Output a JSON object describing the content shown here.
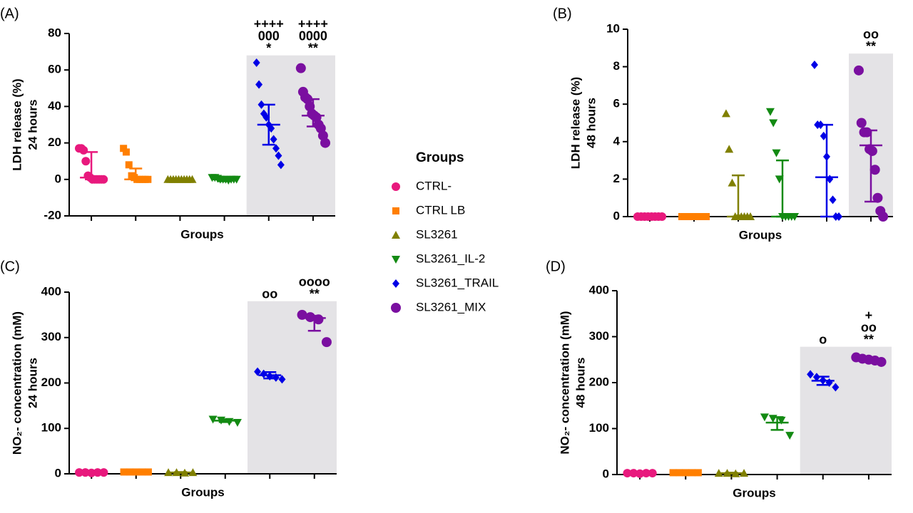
{
  "chart_data": [
    {
      "type": "dot",
      "panel": "(A)",
      "ylabel": [
        "LDH release (%)",
        "24 hours"
      ],
      "xlabel": "Groups",
      "legend_title": "Groups",
      "ylim": [
        -20,
        80
      ],
      "yticks": [
        -20,
        0,
        20,
        40,
        60,
        80
      ],
      "highlight": {
        "from": 4,
        "to": 5,
        "top": 68
      },
      "series": [
        {
          "name": "CTRL-",
          "color": "#e8197d",
          "marker": "circle",
          "values": [
            17,
            17,
            16,
            10,
            2,
            1,
            0,
            0,
            0,
            0,
            0,
            0
          ],
          "center": 1,
          "low": 0,
          "high": 15
        },
        {
          "name": "CTRL LB",
          "color": "#ff7f00",
          "marker": "square",
          "values": [
            17,
            15,
            8,
            2,
            1,
            0,
            0,
            0,
            0,
            0
          ],
          "center": 0,
          "low": 0,
          "high": 6
        },
        {
          "name": "SL3261",
          "color": "#808000",
          "marker": "triangle-up",
          "values": [
            0,
            0,
            0,
            0,
            0,
            0,
            0,
            0,
            0,
            0
          ],
          "center": -0.5,
          "low": -1,
          "high": 0
        },
        {
          "name": "SL3261_IL-2",
          "color": "#138a13",
          "marker": "triangle-down",
          "values": [
            1,
            1,
            0.5,
            0,
            0,
            0,
            -0.5,
            0,
            0,
            0
          ],
          "center": 0,
          "low": -1,
          "high": 1
        },
        {
          "name": "SL3261_TRAIL",
          "color": "#0000e6",
          "marker": "diamond",
          "values": [
            64,
            52,
            41,
            36,
            34,
            30,
            28,
            22,
            17,
            13,
            8
          ],
          "center": 30,
          "low": 19,
          "high": 41,
          "annotations": [
            "++++",
            "000",
            "*"
          ]
        },
        {
          "name": "SL3261_MIX",
          "color": "#7a0fa0",
          "marker": "circle-big",
          "values": [
            61,
            48,
            45,
            44,
            40,
            36,
            35,
            34,
            30,
            28,
            24,
            20
          ],
          "center": 35,
          "low": 29,
          "high": 44,
          "annotations": [
            "++++",
            "0000",
            "**"
          ]
        }
      ]
    },
    {
      "type": "dot",
      "panel": "(B)",
      "ylabel": [
        "LDH release (%)",
        "48 hours"
      ],
      "xlabel": "Groups",
      "ylim": [
        0,
        10
      ],
      "yticks": [
        0,
        2,
        4,
        6,
        8,
        10
      ],
      "highlight": {
        "from": 5,
        "to": 5,
        "top": 8.7
      },
      "series": [
        {
          "name": "CTRL-",
          "color": "#e8197d",
          "marker": "circle",
          "values": [
            0,
            0,
            0,
            0,
            0,
            0,
            0,
            0
          ],
          "center": 0,
          "low": 0,
          "high": 0
        },
        {
          "name": "CTRL LB",
          "color": "#ff7f00",
          "marker": "square",
          "values": [
            0,
            0,
            0,
            0,
            0,
            0,
            0,
            0
          ],
          "center": 0,
          "low": 0,
          "high": 0
        },
        {
          "name": "SL3261",
          "color": "#808000",
          "marker": "triangle-up",
          "values": [
            5.5,
            3.6,
            1.8,
            0,
            0,
            0,
            0,
            0,
            0
          ],
          "center": 0,
          "low": 0,
          "high": 2.2
        },
        {
          "name": "SL3261_IL-2",
          "color": "#138a13",
          "marker": "triangle-down",
          "values": [
            5.6,
            5,
            3.4,
            2,
            0,
            0,
            0,
            0,
            0
          ],
          "center": 0,
          "low": 0,
          "high": 3
        },
        {
          "name": "SL3261_TRAIL",
          "color": "#0000e6",
          "marker": "diamond",
          "values": [
            8.1,
            4.9,
            4.9,
            4.3,
            3.2,
            2,
            0.9,
            0,
            0
          ],
          "center": 2.1,
          "low": 0,
          "high": 4.9
        },
        {
          "name": "SL3261_MIX",
          "color": "#7a0fa0",
          "marker": "circle-big",
          "values": [
            7.8,
            5,
            4.5,
            4.5,
            3.6,
            3.5,
            2.5,
            1,
            0.3,
            0
          ],
          "center": 3.8,
          "low": 0.8,
          "high": 4.6,
          "annotations": [
            "oo",
            "**"
          ]
        }
      ]
    },
    {
      "type": "dot",
      "panel": "(C)",
      "ylabel": [
        "NO₂- concentration (mM)",
        "24 hours"
      ],
      "xlabel": "Groups",
      "ylim": [
        0,
        400
      ],
      "yticks": [
        0,
        100,
        200,
        300,
        400
      ],
      "highlight": {
        "from": 4,
        "to": 5,
        "top": 380
      },
      "series": [
        {
          "name": "CTRL-",
          "color": "#e8197d",
          "marker": "circle",
          "values": [
            3,
            3,
            2,
            3,
            3
          ],
          "center": 3,
          "low": 2,
          "high": 4
        },
        {
          "name": "CTRL LB",
          "color": "#ff7f00",
          "marker": "square",
          "values": [
            4,
            4,
            4,
            4,
            4
          ],
          "center": 4,
          "low": 3,
          "high": 5
        },
        {
          "name": "SL3261",
          "color": "#808000",
          "marker": "triangle-up",
          "values": [
            3,
            3,
            2,
            3
          ],
          "center": 3,
          "low": 2,
          "high": 4
        },
        {
          "name": "SL3261_IL-2",
          "color": "#138a13",
          "marker": "triangle-down",
          "values": [
            120,
            118,
            115,
            113
          ],
          "center": 117,
          "low": 114,
          "high": 120
        },
        {
          "name": "SL3261_TRAIL",
          "color": "#0000e6",
          "marker": "diamond",
          "values": [
            225,
            220,
            215,
            212,
            208
          ],
          "center": 217,
          "low": 210,
          "high": 224,
          "annotations": [
            "oo"
          ]
        },
        {
          "name": "SL3261_MIX",
          "color": "#7a0fa0",
          "marker": "circle-big",
          "values": [
            350,
            345,
            340,
            290
          ],
          "center": 343,
          "low": 315,
          "high": 348,
          "annotations": [
            "oooo",
            "**"
          ]
        }
      ]
    },
    {
      "type": "dot",
      "panel": "(D)",
      "ylabel": [
        "NO₂- concentration (mM)",
        "48 hours"
      ],
      "xlabel": "Groups",
      "ylim": [
        0,
        400
      ],
      "yticks": [
        0,
        100,
        200,
        300,
        400
      ],
      "highlight": {
        "from": 4,
        "to": 5,
        "top": 278
      },
      "series": [
        {
          "name": "CTRL-",
          "color": "#e8197d",
          "marker": "circle",
          "values": [
            3,
            3,
            2,
            3,
            3
          ],
          "center": 3,
          "low": 2,
          "high": 4
        },
        {
          "name": "CTRL LB",
          "color": "#ff7f00",
          "marker": "square",
          "values": [
            4,
            4,
            4,
            4,
            4
          ],
          "center": 4,
          "low": 3,
          "high": 5
        },
        {
          "name": "SL3261",
          "color": "#808000",
          "marker": "triangle-up",
          "values": [
            3,
            3,
            2,
            3
          ],
          "center": 3,
          "low": 2,
          "high": 4
        },
        {
          "name": "SL3261_IL-2",
          "color": "#138a13",
          "marker": "triangle-down",
          "values": [
            125,
            122,
            118,
            85
          ],
          "center": 113,
          "low": 97,
          "high": 125
        },
        {
          "name": "SL3261_TRAIL",
          "color": "#0000e6",
          "marker": "diamond",
          "values": [
            218,
            212,
            205,
            200,
            190
          ],
          "center": 204,
          "low": 195,
          "high": 213,
          "annotations": [
            "o"
          ]
        },
        {
          "name": "SL3261_MIX",
          "color": "#7a0fa0",
          "marker": "circle-big",
          "values": [
            255,
            252,
            250,
            248,
            245
          ],
          "center": 252,
          "low": 249,
          "high": 255,
          "annotations": [
            "+",
            "oo",
            "**"
          ]
        }
      ]
    }
  ]
}
